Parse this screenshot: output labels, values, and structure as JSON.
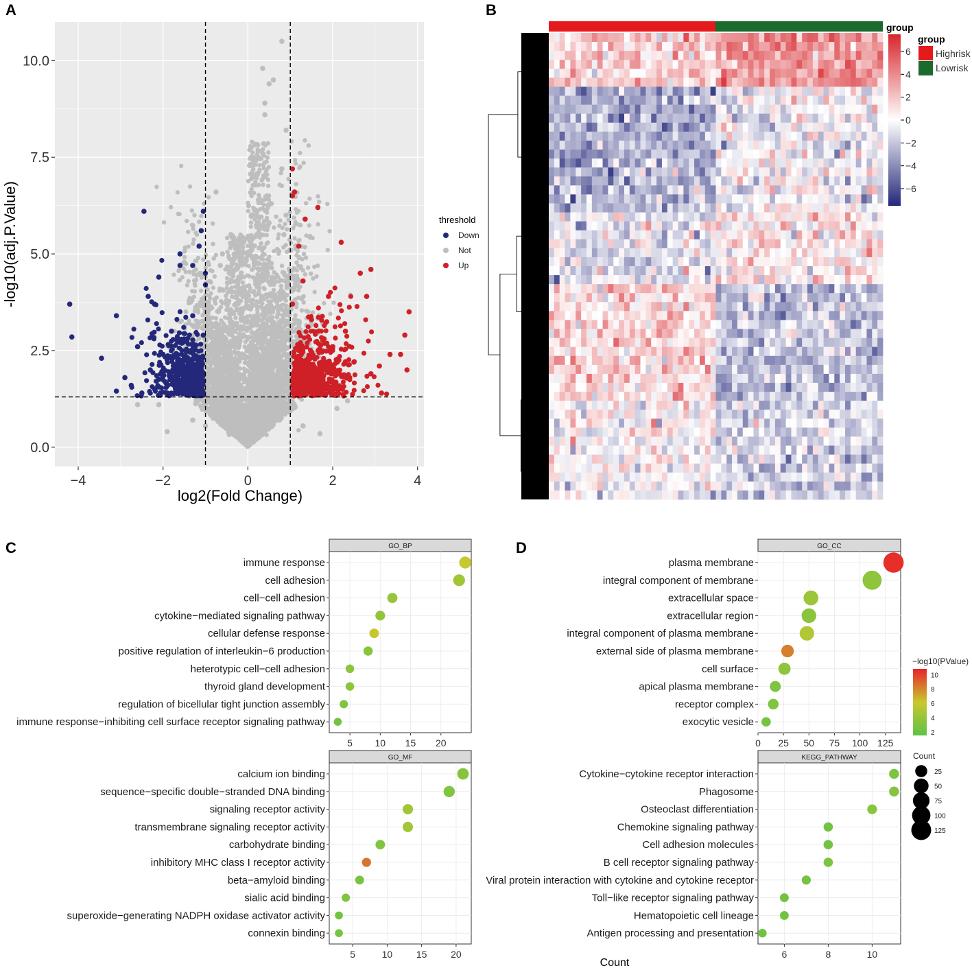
{
  "panels": {
    "a": "A",
    "b": "B",
    "c": "C",
    "d": "D"
  },
  "colors": {
    "down": "#24287a",
    "not": "#bebebe",
    "up": "#cf2027",
    "panel_bg": "#ebebeb",
    "grid": "#ffffff",
    "high": "#e41a1c",
    "low": "#1a6b2d",
    "heat_high": "#d7262c",
    "heat_mid": "#ffffff",
    "heat_low": "#24287a",
    "go_low": "#5ec248",
    "go_mid": "#c8c82e",
    "go_high": "#e8232a",
    "dendrogram": "#000000"
  },
  "chart_data": [
    {
      "id": "volcano",
      "type": "scatter",
      "title": "",
      "xlabel": "log2(Fold Change)",
      "ylabel": "-log10(adj.P.Value)",
      "xlim": [
        -4.55,
        4.15
      ],
      "ylim": [
        -0.5,
        11.0
      ],
      "xticks": [
        -4,
        -2,
        0,
        2,
        4
      ],
      "xtick_labels": [
        "−4",
        "−2",
        "0",
        "2",
        "4"
      ],
      "yticks": [
        0,
        2.5,
        5,
        7.5,
        10
      ],
      "ytick_labels": [
        "0.0",
        "2.5",
        "5.0",
        "7.5",
        "10.0"
      ],
      "thresholds": {
        "fc": [
          -1,
          1
        ],
        "p": 1.3
      },
      "legend": {
        "title": "threshold",
        "entries": [
          "Down",
          "Not",
          "Up"
        ]
      },
      "series": [
        {
          "name": "Down",
          "points": [
            [
              -4.2,
              3.7
            ],
            [
              -4.15,
              2.85
            ],
            [
              -3.45,
              2.3
            ],
            [
              -3.1,
              3.4
            ],
            [
              -2.45,
              6.1
            ],
            [
              -2.1,
              4.4
            ],
            [
              -2.9,
              1.8
            ],
            [
              -3.1,
              1.45
            ],
            [
              -2.35,
              3.9
            ],
            [
              -2.2,
              3.7
            ],
            [
              -1.6,
              5.0
            ],
            [
              -1.3,
              4.7
            ],
            [
              -1.05,
              6.1
            ],
            [
              -1.1,
              5.6
            ],
            [
              -1.15,
              5.2
            ],
            [
              -1.0,
              4.5
            ],
            [
              -1.0,
              4.2
            ],
            [
              -1.6,
              4.7
            ],
            [
              -2.5,
              1.4
            ],
            [
              -1.9,
              1.4
            ],
            [
              -1.2,
              1.5
            ],
            [
              -2.6,
              2.6
            ],
            [
              -2.0,
              2.4
            ],
            [
              -1.5,
              2.8
            ],
            [
              -1.3,
              3.4
            ],
            [
              -1.05,
              2.9
            ],
            [
              -1.8,
              3.0
            ],
            [
              -1.25,
              2.1
            ],
            [
              -2.75,
              1.6
            ],
            [
              -2.3,
              2.0
            ]
          ]
        },
        {
          "name": "Not",
          "points": [
            [
              0.8,
              10.5
            ],
            [
              0.6,
              9.5
            ],
            [
              0.5,
              9.4
            ],
            [
              0.4,
              8.9
            ],
            [
              0.35,
              9.8
            ],
            [
              0.4,
              8.6
            ],
            [
              0.35,
              7.6
            ],
            [
              0.4,
              7.0
            ],
            [
              0.55,
              6.3
            ],
            [
              -0.75,
              6.6
            ],
            [
              -0.6,
              5.0
            ],
            [
              -0.65,
              4.7
            ],
            [
              0.9,
              6.0
            ],
            [
              0.85,
              5.5
            ],
            [
              0.7,
              5.1
            ],
            [
              0.8,
              7.2
            ],
            [
              0.9,
              8.2
            ],
            [
              0.45,
              6.5
            ],
            [
              0.5,
              5.8
            ],
            [
              -0.4,
              5.5
            ],
            [
              0.45,
              4.6
            ],
            [
              0.55,
              3.9
            ],
            [
              -0.5,
              3.8
            ],
            [
              -0.2,
              2.7
            ],
            [
              0.3,
              2.3
            ],
            [
              -0.3,
              1.8
            ],
            [
              0.2,
              1.2
            ],
            [
              0.6,
              1.6
            ],
            [
              -0.8,
              2.5
            ],
            [
              -0.9,
              1.9
            ],
            [
              -1.3,
              0.7
            ],
            [
              -2.1,
              1.1
            ],
            [
              -2.6,
              1.1
            ],
            [
              -1.0,
              0.55
            ],
            [
              0.9,
              0.9
            ],
            [
              1.3,
              0.55
            ],
            [
              2.1,
              1.0
            ],
            [
              2.35,
              1.2
            ],
            [
              1.7,
              0.35
            ],
            [
              -1.9,
              0.4
            ]
          ]
        },
        {
          "name": "Up",
          "points": [
            [
              1.05,
              7.2
            ],
            [
              1.05,
              6.5
            ],
            [
              1.1,
              6.6
            ],
            [
              1.65,
              6.2
            ],
            [
              1.35,
              5.9
            ],
            [
              1.2,
              5.2
            ],
            [
              2.2,
              5.3
            ],
            [
              1.3,
              4.3
            ],
            [
              2.9,
              4.6
            ],
            [
              2.65,
              4.5
            ],
            [
              3.8,
              3.5
            ],
            [
              3.7,
              2.9
            ],
            [
              1.05,
              3.7
            ],
            [
              1.9,
              3.9
            ],
            [
              2.8,
              3.9
            ],
            [
              1.5,
              3.3
            ],
            [
              2.3,
              3.0
            ],
            [
              3.35,
              2.4
            ],
            [
              3.6,
              2.4
            ],
            [
              3.75,
              2.0
            ],
            [
              3.1,
              2.1
            ],
            [
              3.15,
              1.4
            ],
            [
              2.5,
              2.2
            ],
            [
              2.0,
              2.6
            ],
            [
              1.2,
              2.5
            ],
            [
              1.6,
              1.5
            ],
            [
              1.1,
              1.4
            ],
            [
              2.4,
              1.8
            ],
            [
              1.4,
              2.0
            ],
            [
              2.9,
              1.9
            ]
          ]
        }
      ]
    },
    {
      "id": "heatmap",
      "type": "heatmap",
      "title": "",
      "rows": 52,
      "cols": 62,
      "groups": [
        "Highrisk",
        "Lowrisk"
      ],
      "group_sizes": [
        31,
        31
      ],
      "top_annotation_label": "group",
      "legend_title": "group",
      "colorbar_range": [
        -7.5,
        7.5
      ],
      "colorbar_ticks": [
        6,
        4,
        2,
        0,
        -2,
        -4,
        -6
      ],
      "colorbar_tick_labels": [
        "6",
        "4",
        "2",
        "0",
        "−2",
        "−4",
        "−6"
      ],
      "row_block_signs": [
        [
          6,
          0.25,
          0.55
        ],
        [
          14,
          -0.4,
          -0.05
        ],
        [
          8,
          -0.15,
          0.12
        ],
        [
          13,
          0.2,
          -0.3
        ],
        [
          11,
          0.03,
          -0.2
        ]
      ]
    },
    {
      "id": "go_bp",
      "type": "scatter",
      "facet": "GO_BP",
      "terms": [
        "immune response",
        "cell adhesion",
        "cell−cell adhesion",
        "cytokine−mediated signaling pathway",
        "cellular defense response",
        "positive regulation of interleukin−6 production",
        "heterotypic cell−cell adhesion",
        "thyroid gland development",
        "regulation of bicellular tight junction assembly",
        "immune response−inhibiting cell surface receptor signaling pathway"
      ],
      "count": [
        24,
        23,
        12,
        10,
        9,
        8,
        5,
        5,
        4,
        3
      ],
      "neglog10p": [
        6.0,
        4.4,
        4.0,
        3.8,
        6.2,
        3.4,
        3.5,
        3.6,
        3.0,
        2.4
      ],
      "xlim": [
        1.6,
        25.0
      ],
      "xticks": [
        5,
        10,
        15,
        20
      ],
      "xtick_labels": [
        "5",
        "10",
        "15",
        "20"
      ]
    },
    {
      "id": "go_cc",
      "type": "scatter",
      "facet": "GO_CC",
      "terms": [
        "plasma membrane",
        "integral component of membrane",
        "extracellular space",
        "extracellular region",
        "integral component of plasma membrane",
        "external side of plasma membrane",
        "cell surface",
        "apical plasma membrane",
        "receptor complex",
        "exocytic vesicle"
      ],
      "count": [
        133,
        112,
        52,
        50,
        48,
        29,
        26,
        17,
        15,
        8
      ],
      "neglog10p": [
        10.5,
        3.6,
        4.2,
        3.5,
        5.2,
        8.2,
        3.6,
        2.8,
        3.0,
        2.6
      ],
      "xlim": [
        0,
        140
      ],
      "xticks": [
        0,
        25,
        50,
        75,
        100,
        125
      ],
      "xtick_labels": [
        "0",
        "25",
        "50",
        "75",
        "100",
        "125"
      ]
    },
    {
      "id": "go_mf",
      "type": "scatter",
      "facet": "GO_MF",
      "terms": [
        "calcium ion binding",
        "sequence−specific double−stranded DNA binding",
        "signaling receptor activity",
        "transmembrane signaling receptor activity",
        "carbohydrate binding",
        "inhibitory MHC class I receptor activity",
        "beta−amyloid binding",
        "sialic acid binding",
        "superoxide−generating NADPH oxidase activator activity",
        "connexin binding"
      ],
      "count": [
        21,
        19,
        13,
        13,
        9,
        7,
        6,
        4,
        3,
        3
      ],
      "neglog10p": [
        3.3,
        3.0,
        4.3,
        4.5,
        3.0,
        8.5,
        2.6,
        3.0,
        2.4,
        2.5
      ],
      "xlim": [
        1.6,
        22.2
      ],
      "xticks": [
        5,
        10,
        15,
        20
      ],
      "xtick_labels": [
        "5",
        "10",
        "15",
        "20"
      ]
    },
    {
      "id": "kegg",
      "type": "scatter",
      "facet": "KEGG_PATHWAY",
      "terms": [
        "Cytokine−cytokine receptor interaction",
        "Phagosome",
        "Osteoclast differentiation",
        "Chemokine signaling pathway",
        "Cell adhesion molecules",
        "B cell receptor signaling pathway",
        "Viral protein interaction with cytokine and cytokine receptor",
        "Toll−like receptor signaling pathway",
        "Hematopoietic cell lineage",
        "Antigen processing and presentation"
      ],
      "count": [
        11,
        11,
        10,
        8,
        8,
        8,
        7,
        6,
        6,
        5
      ],
      "neglog10p": [
        2.8,
        3.2,
        3.4,
        2.4,
        2.4,
        2.8,
        2.5,
        2.4,
        2.4,
        2.3
      ],
      "xlim": [
        4.8,
        11.3
      ],
      "xticks": [
        6,
        8,
        10
      ],
      "xtick_labels": [
        "6",
        "8",
        "10"
      ],
      "xlabel": "Count"
    }
  ],
  "color_legend": {
    "title": "−log10(PValue)",
    "min": 1.5,
    "max": 10.8,
    "ticks": [
      10,
      8,
      6,
      4,
      2
    ],
    "tick_labels": [
      "10",
      "8",
      "6",
      "4",
      "2"
    ]
  },
  "size_legend": {
    "title": "Count",
    "values": [
      25,
      50,
      75,
      100,
      125
    ],
    "labels": [
      "25",
      "50",
      "75",
      "100",
      "125"
    ]
  }
}
